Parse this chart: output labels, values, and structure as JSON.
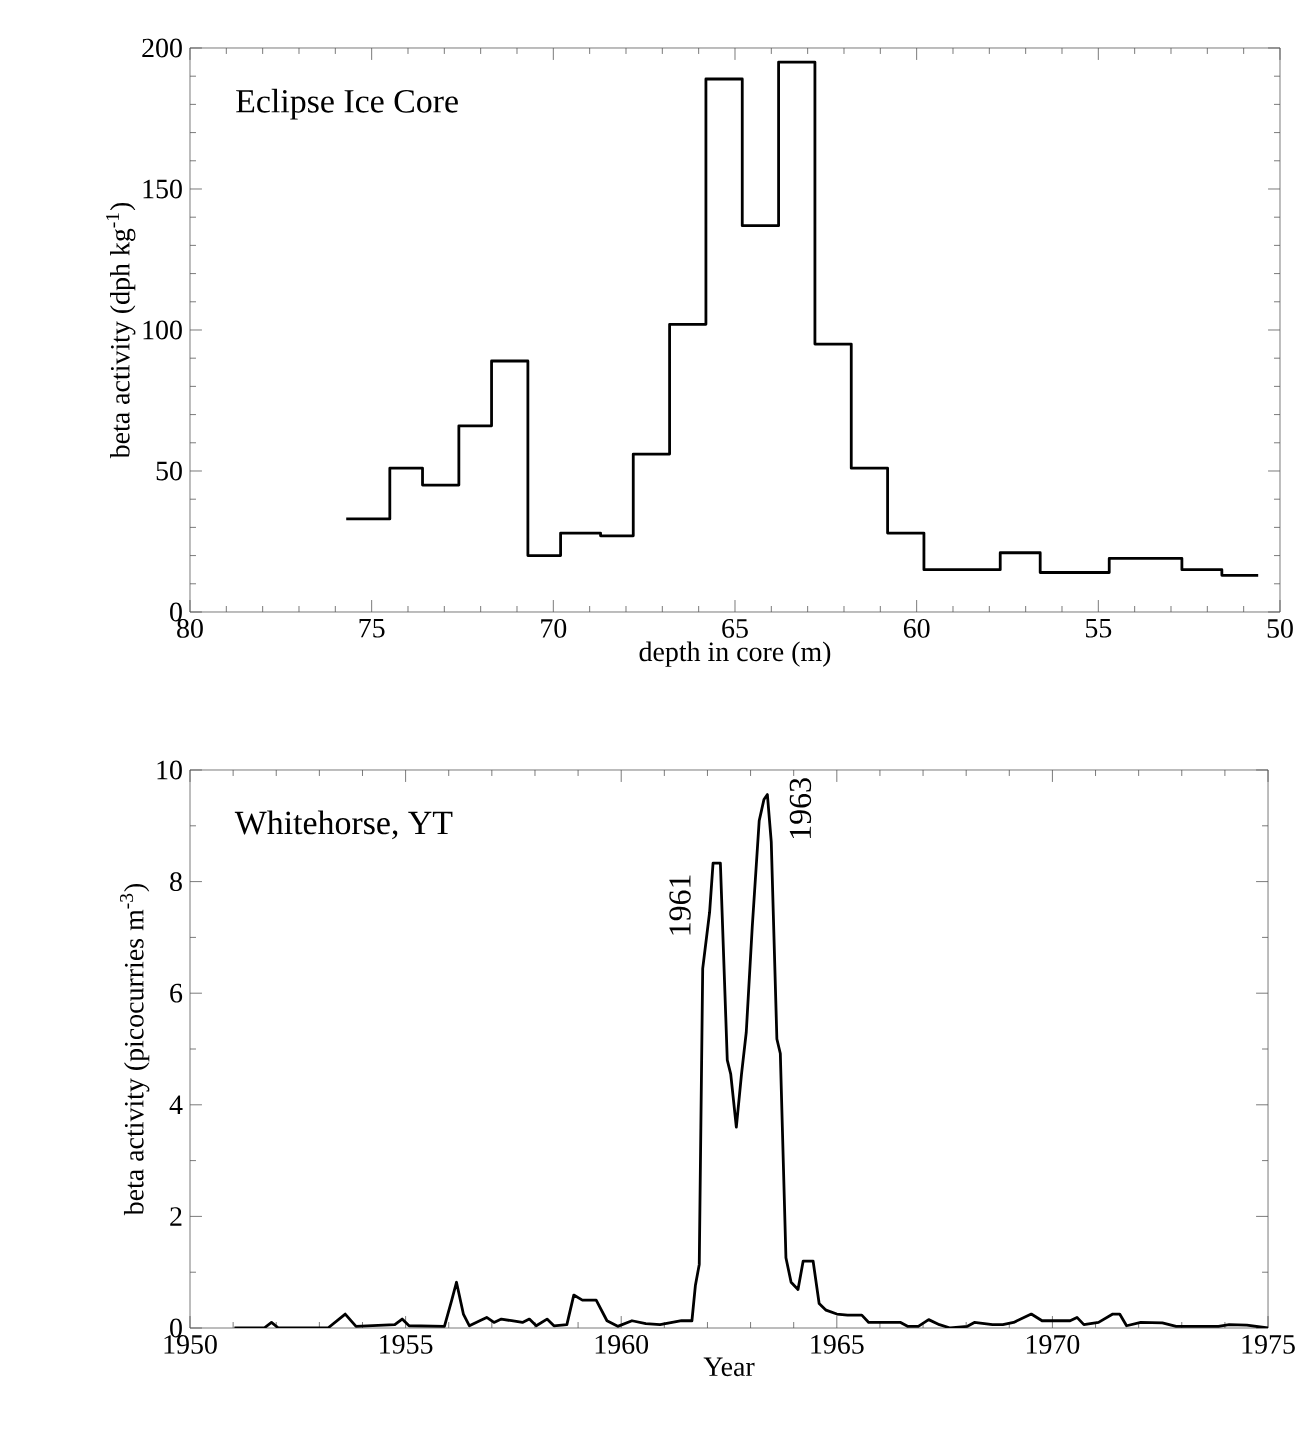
{
  "chart_data": [
    {
      "type": "histogram",
      "title": "Eclipse Ice Core",
      "xlabel": "depth in core (m)",
      "ylabel": "beta activity (dph kg$^{-1}$)",
      "color": "#000000",
      "bins": [
        75.7,
        74.5,
        73.6,
        72.6,
        71.7,
        70.7,
        69.8,
        68.7,
        67.8,
        66.8,
        65.8,
        64.8,
        63.8,
        62.8,
        61.8,
        60.8,
        59.8,
        57.7,
        56.6,
        54.7,
        52.7,
        51.6,
        50.6
      ],
      "values": [
        33,
        51,
        45,
        66,
        89,
        20,
        28,
        27,
        56,
        102,
        189,
        137,
        195,
        95,
        51,
        28,
        15,
        21,
        14,
        19,
        15,
        13
      ],
      "xlim": [
        80,
        50
      ],
      "xticks": [
        80,
        75,
        70,
        65,
        60,
        55,
        50
      ],
      "ylim": [
        0,
        200
      ],
      "yticks": [
        0,
        50,
        100,
        150,
        200
      ]
    },
    {
      "type": "line",
      "title": "Whitehorse, YT",
      "xlabel": "Year",
      "ylabel": "beta activity (picocurries m$^{-3}$)",
      "color": "#000000",
      "x": [
        1951.03,
        1951.72,
        1951.89,
        1952.05,
        1953.2,
        1953.6,
        1953.85,
        1954.75,
        1954.92,
        1955.08,
        1955.9,
        1956.07,
        1956.18,
        1956.34,
        1956.48,
        1956.72,
        1956.88,
        1957.05,
        1957.22,
        1957.46,
        1957.71,
        1957.87,
        1958.03,
        1958.28,
        1958.44,
        1958.74,
        1958.9,
        1959.1,
        1959.42,
        1959.67,
        1959.92,
        1960.25,
        1960.57,
        1960.9,
        1961.4,
        1961.64,
        1961.72,
        1961.81,
        1961.89,
        1962.05,
        1962.13,
        1962.3,
        1962.46,
        1962.54,
        1962.67,
        1962.79,
        1962.9,
        1963.04,
        1963.2,
        1963.31,
        1963.39,
        1963.48,
        1963.61,
        1963.69,
        1963.82,
        1963.94,
        1964.1,
        1964.22,
        1964.45,
        1964.59,
        1964.75,
        1965.0,
        1965.25,
        1965.58,
        1965.74,
        1966.48,
        1966.64,
        1966.89,
        1967.13,
        1967.38,
        1967.63,
        1968.03,
        1968.19,
        1968.61,
        1968.85,
        1969.1,
        1969.51,
        1969.76,
        1970.41,
        1970.57,
        1970.73,
        1971.07,
        1971.4,
        1971.56,
        1971.72,
        1972.05,
        1972.55,
        1972.87,
        1973.85,
        1974.1,
        1974.51,
        1975.0
      ],
      "values": [
        0,
        0,
        0.1,
        0,
        0,
        0.25,
        0.03,
        0.06,
        0.16,
        0.04,
        0.03,
        0.5,
        0.82,
        0.25,
        0.04,
        0.13,
        0.19,
        0.1,
        0.16,
        0.13,
        0.1,
        0.16,
        0.04,
        0.16,
        0.04,
        0.06,
        0.59,
        0.5,
        0.5,
        0.13,
        0.03,
        0.13,
        0.08,
        0.06,
        0.13,
        0.13,
        0.76,
        1.14,
        6.44,
        7.45,
        8.33,
        8.33,
        4.8,
        4.55,
        3.6,
        4.55,
        5.3,
        7.2,
        9.09,
        9.47,
        9.56,
        8.71,
        5.18,
        4.92,
        1.26,
        0.82,
        0.69,
        1.2,
        1.2,
        0.44,
        0.32,
        0.25,
        0.23,
        0.23,
        0.1,
        0.1,
        0.03,
        0.03,
        0.15,
        0.06,
        0,
        0.03,
        0.1,
        0.06,
        0.06,
        0.1,
        0.25,
        0.13,
        0.13,
        0.19,
        0.06,
        0.1,
        0.25,
        0.25,
        0.04,
        0.1,
        0.09,
        0.03,
        0.03,
        0.06,
        0.05,
        0
      ],
      "xlim": [
        1950,
        1975
      ],
      "xticks": [
        1950,
        1955,
        1960,
        1965,
        1970,
        1975
      ],
      "ylim": [
        0,
        10
      ],
      "yticks": [
        0,
        2,
        4,
        6,
        8,
        10
      ],
      "annotations": [
        {
          "text": "1961",
          "x": 1962.13,
          "y": 8.33
        },
        {
          "text": "1963",
          "x": 1963.39,
          "y": 9.56
        }
      ]
    }
  ]
}
